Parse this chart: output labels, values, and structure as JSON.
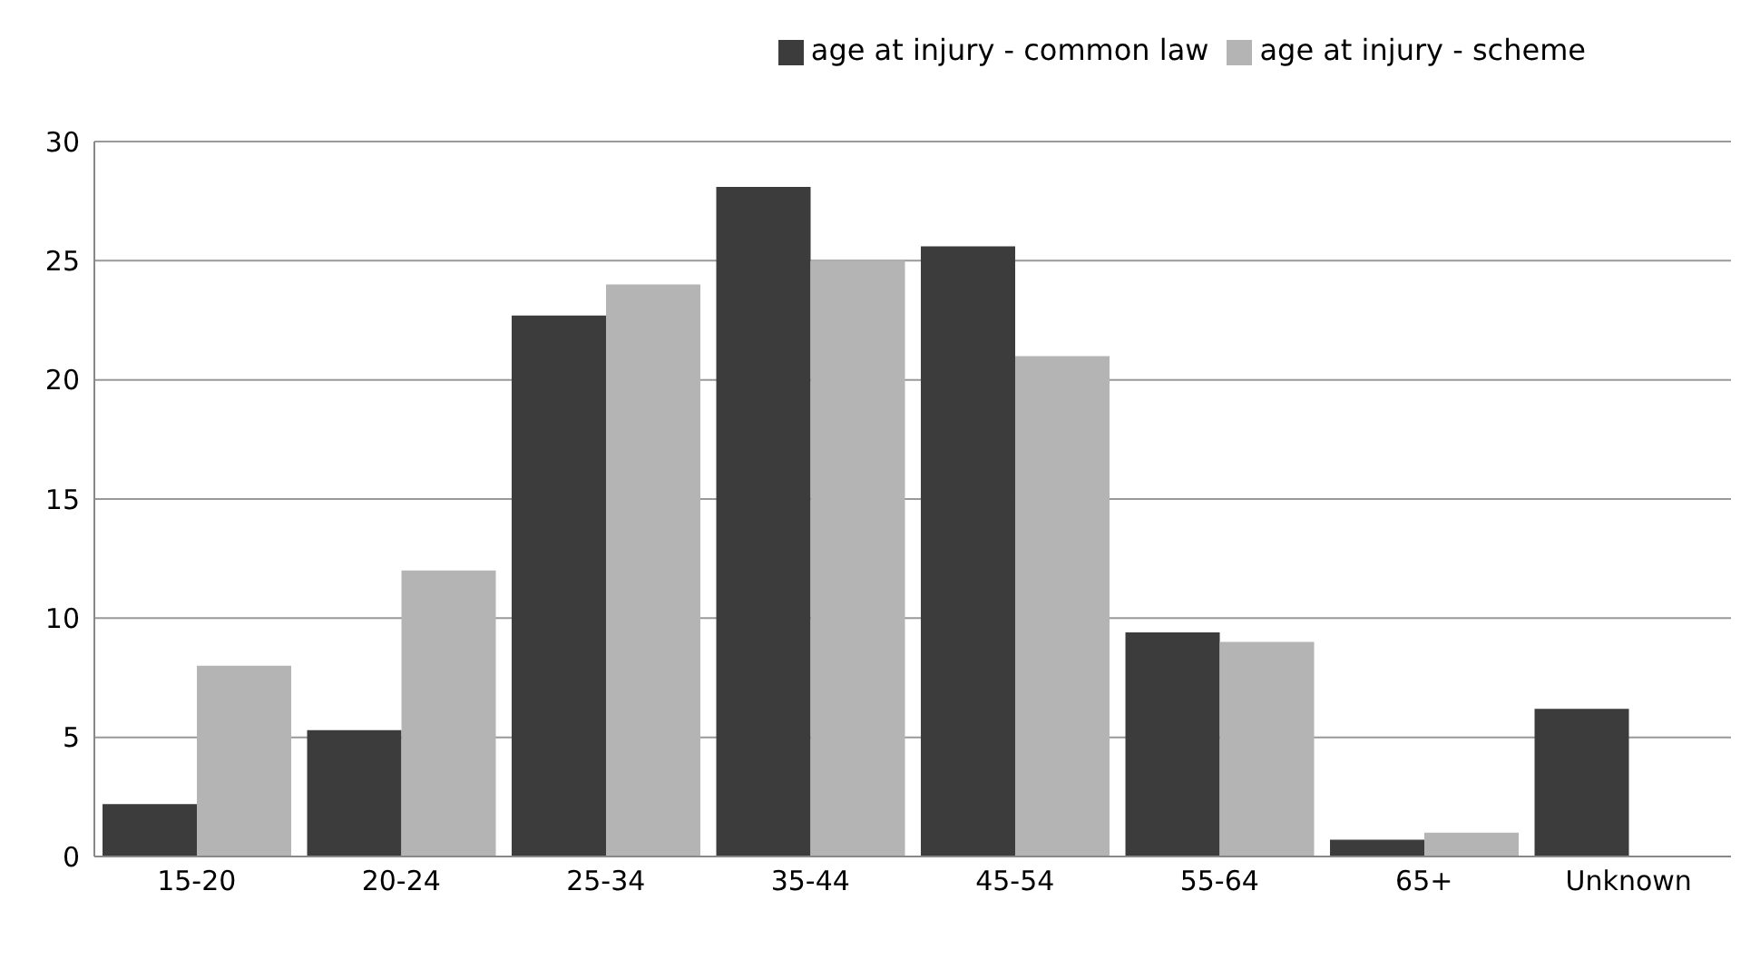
{
  "chart_data": {
    "type": "bar",
    "categories": [
      "15-20",
      "20-24",
      "25-34",
      "35-44",
      "45-54",
      "55-64",
      "65+",
      "Unknown"
    ],
    "series": [
      {
        "name": "age at injury - common law",
        "color": "#3c3c3c",
        "values": [
          2.2,
          5.3,
          22.7,
          28.1,
          25.6,
          9.4,
          0.7,
          6.2
        ]
      },
      {
        "name": "age at injury - scheme",
        "color": "#b4b4b4",
        "values": [
          8,
          12,
          24,
          25,
          21,
          9,
          1,
          null
        ]
      }
    ],
    "ylim": [
      0,
      30
    ],
    "yticks": [
      0,
      5,
      10,
      15,
      20,
      25,
      30
    ],
    "grid": "y",
    "legend": "top right"
  }
}
